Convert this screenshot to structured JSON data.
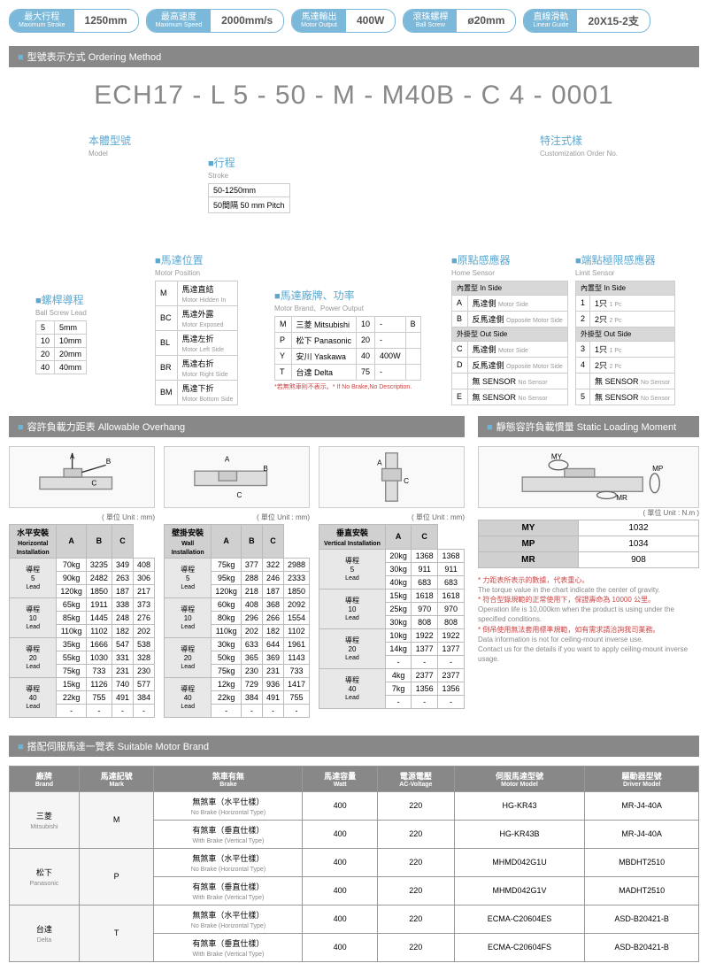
{
  "specs": [
    {
      "cn": "最大行程",
      "en": "Maximum Stroke",
      "val": "1250mm"
    },
    {
      "cn": "最高速度",
      "en": "Maximum Speed",
      "val": "2000mm/s"
    },
    {
      "cn": "馬達輸出",
      "en": "Motor Output",
      "val": "400W"
    },
    {
      "cn": "滾珠螺桿",
      "en": "Ball Screw",
      "val": "ø20mm"
    },
    {
      "cn": "直線滑軌",
      "en": "Linear Guide",
      "val": "20X15-2支"
    }
  ],
  "orderingHeader": "型號表示方式 Ordering Method",
  "orderingCode": "ECH17 - L 5 - 50 - M - M40B - C 4 - 0001",
  "diagLabels": {
    "model": {
      "cn": "本體型號",
      "en": "Model"
    },
    "stroke": {
      "cn": "行程",
      "en": "Stroke"
    },
    "strokeInfo": {
      "range": "50-1250mm",
      "pitch": "50間隔 50 mm Pitch"
    },
    "custom": {
      "cn": "特注式樣",
      "en": "Customization Order No."
    },
    "lead": {
      "cn": "螺桿導程",
      "en": "Ball Screw Lead"
    },
    "position": {
      "cn": "馬達位置",
      "en": "Motor Position"
    },
    "brand": {
      "cn": "馬達廠牌、功率",
      "en": "Motor Brand、Power Output"
    },
    "brandNote": "*若無煞車則不表示。* If No Brake,No Description.",
    "home": {
      "cn": "原點感應器",
      "en": "Home Sensor"
    },
    "limit": {
      "cn": "端點極限感應器",
      "en": "Limit Sensor"
    }
  },
  "leadTable": [
    [
      "5",
      "5mm"
    ],
    [
      "10",
      "10mm"
    ],
    [
      "20",
      "20mm"
    ],
    [
      "40",
      "40mm"
    ]
  ],
  "positionTable": [
    [
      "M",
      "馬達直結",
      "Motor Hidden In"
    ],
    [
      "BC",
      "馬達外露",
      "Motor Exposed"
    ],
    [
      "BL",
      "馬達左折",
      "Motor Left Side"
    ],
    [
      "BR",
      "馬達右折",
      "Motor Right Side"
    ],
    [
      "BM",
      "馬達下折",
      "Motor Bottom Side"
    ]
  ],
  "brandTable": {
    "brands": [
      [
        "M",
        "三菱 Mitsubishi"
      ],
      [
        "P",
        "松下 Panasonic"
      ],
      [
        "Y",
        "安川 Yaskawa"
      ],
      [
        "T",
        "台達 Delta"
      ]
    ],
    "watts": [
      [
        "10",
        "-",
        "B"
      ],
      [
        "20",
        "-",
        ""
      ],
      [
        "40",
        "400W",
        ""
      ],
      [
        "75",
        "-",
        ""
      ]
    ]
  },
  "homeTable": {
    "inside": "內置型 In Side",
    "outside": "外掛型 Out Side",
    "rows1": [
      [
        "A",
        "馬達側",
        "Motor Side"
      ],
      [
        "B",
        "反馬達側",
        "Opposite Motor Side"
      ]
    ],
    "rows2": [
      [
        "C",
        "馬達側",
        "Motor Side"
      ],
      [
        "D",
        "反馬達側",
        "Opposite Motor Side"
      ],
      [
        "",
        "無 SENSOR",
        "No Sensor"
      ],
      [
        "E",
        "無 SENSOR",
        "No Sensor"
      ]
    ]
  },
  "limitTable": {
    "inside": "內置型 In Side",
    "outside": "外掛型 Out Side",
    "rows1": [
      [
        "1",
        "1只",
        "1 Pc"
      ],
      [
        "2",
        "2只",
        "2 Pc"
      ]
    ],
    "rows2": [
      [
        "3",
        "1只",
        "1 Pc"
      ],
      [
        "4",
        "2只",
        "2 Pc"
      ],
      [
        "",
        "無 SENSOR",
        "No Sensor"
      ],
      [
        "5",
        "無 SENSOR",
        "No Sensor"
      ]
    ]
  },
  "overhangHeader": "容許負載力距表 Allowable Overhang",
  "staticHeader": "靜態容許負載慣量 Static Loading Moment",
  "unitMm": "( 單位 Unit : mm)",
  "unitNm": "( 單位 Unit : N.m )",
  "horizTitle": {
    "cn": "水平安裝",
    "en": "Horizontal Installation"
  },
  "wallTitle": {
    "cn": "壁掛安裝",
    "en": "Wall Installation"
  },
  "vertTitle": {
    "cn": "垂直安裝",
    "en": "Vertical Installation"
  },
  "leadLabel": "導程",
  "leadEn": "Lead",
  "horiz": [
    {
      "lead": "5",
      "rows": [
        [
          "70kg",
          "3235",
          "349",
          "408"
        ],
        [
          "90kg",
          "2482",
          "263",
          "306"
        ],
        [
          "120kg",
          "1850",
          "187",
          "217"
        ]
      ]
    },
    {
      "lead": "10",
      "rows": [
        [
          "65kg",
          "1911",
          "338",
          "373"
        ],
        [
          "85kg",
          "1445",
          "248",
          "276"
        ],
        [
          "110kg",
          "1102",
          "182",
          "202"
        ]
      ]
    },
    {
      "lead": "20",
      "rows": [
        [
          "35kg",
          "1666",
          "547",
          "538"
        ],
        [
          "55kg",
          "1030",
          "331",
          "328"
        ],
        [
          "75kg",
          "733",
          "231",
          "230"
        ]
      ]
    },
    {
      "lead": "40",
      "rows": [
        [
          "15kg",
          "1126",
          "740",
          "577"
        ],
        [
          "22kg",
          "755",
          "491",
          "384"
        ],
        [
          "-",
          "-",
          "-",
          "-"
        ]
      ]
    }
  ],
  "wall": [
    {
      "lead": "5",
      "rows": [
        [
          "75kg",
          "377",
          "322",
          "2988"
        ],
        [
          "95kg",
          "288",
          "246",
          "2333"
        ],
        [
          "120kg",
          "218",
          "187",
          "1850"
        ]
      ]
    },
    {
      "lead": "10",
      "rows": [
        [
          "60kg",
          "408",
          "368",
          "2092"
        ],
        [
          "80kg",
          "296",
          "266",
          "1554"
        ],
        [
          "110kg",
          "202",
          "182",
          "1102"
        ]
      ]
    },
    {
      "lead": "20",
      "rows": [
        [
          "30kg",
          "633",
          "644",
          "1961"
        ],
        [
          "50kg",
          "365",
          "369",
          "1143"
        ],
        [
          "75kg",
          "230",
          "231",
          "733"
        ]
      ]
    },
    {
      "lead": "40",
      "rows": [
        [
          "12kg",
          "729",
          "936",
          "1417"
        ],
        [
          "22kg",
          "384",
          "491",
          "755"
        ],
        [
          "-",
          "-",
          "-",
          "-"
        ]
      ]
    }
  ],
  "vert": [
    {
      "lead": "5",
      "rows": [
        [
          "20kg",
          "1368",
          "1368"
        ],
        [
          "30kg",
          "911",
          "911"
        ],
        [
          "40kg",
          "683",
          "683"
        ]
      ]
    },
    {
      "lead": "10",
      "rows": [
        [
          "15kg",
          "1618",
          "1618"
        ],
        [
          "25kg",
          "970",
          "970"
        ],
        [
          "30kg",
          "808",
          "808"
        ]
      ]
    },
    {
      "lead": "20",
      "rows": [
        [
          "10kg",
          "1922",
          "1922"
        ],
        [
          "14kg",
          "1377",
          "1377"
        ],
        [
          "-",
          "-",
          "-"
        ]
      ]
    },
    {
      "lead": "40",
      "rows": [
        [
          "4kg",
          "2377",
          "2377"
        ],
        [
          "7kg",
          "1356",
          "1356"
        ],
        [
          "-",
          "-",
          "-"
        ]
      ]
    }
  ],
  "momentTable": [
    [
      "MY",
      "1032"
    ],
    [
      "MP",
      "1034"
    ],
    [
      "MR",
      "908"
    ]
  ],
  "notes": [
    {
      "red": true,
      "txt": "* 力距表所表示的數據，代表重心。"
    },
    {
      "red": false,
      "txt": "The torque value in the chart indicate the center of gravity."
    },
    {
      "red": true,
      "txt": "* 符合型錄規範的正常使用下，保證壽命為 10000 公里。"
    },
    {
      "red": false,
      "txt": "Operation life is 10,000km when the product is using under the specified conditions."
    },
    {
      "red": true,
      "txt": "* 倒吊使用無法套用標準規範，如有需求請洽詢我司業務。"
    },
    {
      "red": false,
      "txt": "Data information is not for ceiling-mount inverse use."
    },
    {
      "red": false,
      "txt": "Contact us for the details if you want to apply ceiling-mount inverse usage."
    }
  ],
  "motorHeader": "搭配伺服馬達一覽表 Suitable Motor Brand",
  "motorCols": [
    {
      "cn": "廠牌",
      "en": "Brand"
    },
    {
      "cn": "馬達記號",
      "en": "Mark"
    },
    {
      "cn": "煞車有無",
      "en": "Brake"
    },
    {
      "cn": "馬達容量",
      "en": "Watt"
    },
    {
      "cn": "電源電壓",
      "en": "AC-Voltage"
    },
    {
      "cn": "伺服馬達型號",
      "en": "Motor Model"
    },
    {
      "cn": "驅動器型號",
      "en": "Driver Model"
    }
  ],
  "brakeNo": {
    "cn": "無煞車（水平仕樣）",
    "en": "No Brake (Horizontal Type)"
  },
  "brakeYes": {
    "cn": "有煞車（垂直仕樣）",
    "en": "With Brake (Vertical Type)"
  },
  "motorRows": [
    {
      "brand": "三菱",
      "brandEn": "Mitsubishi",
      "mark": "M",
      "rows": [
        [
          "no",
          "400",
          "220",
          "HG-KR43",
          "MR-J4-40A"
        ],
        [
          "yes",
          "400",
          "220",
          "HG-KR43B",
          "MR-J4-40A"
        ]
      ]
    },
    {
      "brand": "松下",
      "brandEn": "Panasonic",
      "mark": "P",
      "rows": [
        [
          "no",
          "400",
          "220",
          "MHMD042G1U",
          "MBDHT2510"
        ],
        [
          "yes",
          "400",
          "220",
          "MHMD042G1V",
          "MADHT2510"
        ]
      ]
    },
    {
      "brand": "台達",
      "brandEn": "Delta",
      "mark": "T",
      "rows": [
        [
          "no",
          "400",
          "220",
          "ECMA-C20604ES",
          "ASD-B20421-B"
        ],
        [
          "yes",
          "400",
          "220",
          "ECMA-C20604FS",
          "ASD-B20421-B"
        ]
      ]
    }
  ]
}
